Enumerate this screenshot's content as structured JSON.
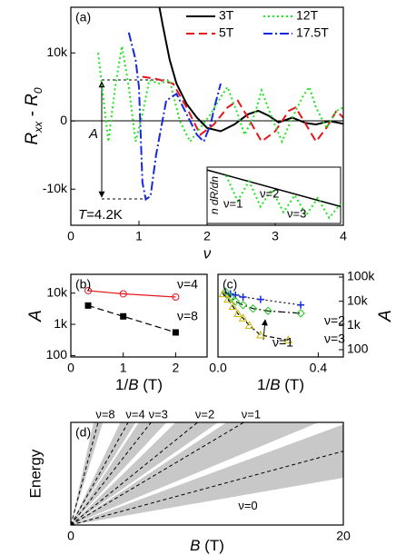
{
  "chart_data": [
    {
      "type": "line",
      "panel_label": "(a)",
      "xlabel": "ν",
      "ylabel_parts": [
        "R",
        "xx",
        " - R",
        "0"
      ],
      "xlim": [
        0,
        4
      ],
      "ylim": [
        -15300,
        16700
      ],
      "xticks": [
        0,
        1,
        2,
        3,
        4
      ],
      "yticks": [
        {
          "value": -10000,
          "label": "-10k"
        },
        0,
        {
          "value": 10000,
          "label": "10k"
        }
      ],
      "annotations": [
        "A",
        "T",
        "=4.2K"
      ],
      "series": [
        {
          "name": "3T",
          "color": "#000000",
          "dash": "",
          "x": [
            1.3,
            1.35,
            1.45,
            1.55,
            1.7,
            1.85,
            2.0,
            2.2,
            2.4,
            2.6,
            2.75,
            2.9,
            3.05,
            3.25,
            3.45,
            3.6,
            3.8,
            4.0
          ],
          "values": [
            16700,
            14000,
            9000,
            5500,
            2500,
            500,
            -1000,
            -1500,
            -500,
            1000,
            1500,
            800,
            -200,
            500,
            -300,
            -500,
            0,
            -400
          ]
        },
        {
          "name": "5T",
          "color": "#e8141c",
          "dash": "9,5",
          "x": [
            1.05,
            1.25,
            1.5,
            1.7,
            1.9,
            2.1,
            2.3,
            2.45,
            2.6,
            2.8,
            3.0,
            3.2,
            3.3,
            3.45,
            3.6,
            3.75,
            3.9,
            4.0
          ],
          "values": [
            6500,
            6200,
            5500,
            2000,
            -2000,
            -500,
            2000,
            3000,
            500,
            -3000,
            -1500,
            1500,
            2000,
            -500,
            -3000,
            -1000,
            1500,
            500
          ]
        },
        {
          "name": "12T",
          "color": "#1ee41e",
          "dash": "2,3",
          "x": [
            0.4,
            0.47,
            0.55,
            0.65,
            0.75,
            0.85,
            0.95,
            1.05,
            1.15,
            1.3,
            1.45,
            1.6,
            1.75,
            1.9,
            2.05,
            2.2,
            2.3,
            2.45,
            2.55,
            2.7,
            2.8,
            2.95,
            3.1,
            3.25,
            3.4,
            3.5,
            3.6,
            3.75,
            3.9,
            4.0
          ],
          "values": [
            10000,
            4000,
            -3000,
            5000,
            11000,
            5000,
            -3000,
            1000,
            6000,
            5500,
            6000,
            0,
            -3000,
            -1000,
            1000,
            3500,
            5000,
            1000,
            -2000,
            1000,
            4500,
            500,
            -3000,
            500,
            3500,
            5000,
            2000,
            -1000,
            1500,
            2000
          ]
        },
        {
          "name": "17.5T",
          "color": "#1428e0",
          "dash": "10,3,2,3",
          "x": [
            0.85,
            0.95,
            1.0,
            1.05,
            1.1,
            1.17,
            1.25,
            1.4,
            1.55,
            1.65,
            1.75,
            1.85,
            1.95,
            2.05,
            2.12,
            2.2
          ],
          "values": [
            13000,
            9000,
            5000,
            -9000,
            -11500,
            -11000,
            -5000,
            3000,
            4000,
            2000,
            0,
            -2000,
            -3000,
            -500,
            2500,
            5500
          ]
        }
      ],
      "inset": {
        "ylabel": "n dR/dn",
        "labels": [
          "ν=1",
          "ν=2",
          "ν=3"
        ],
        "xlim": [
          0.5,
          4
        ],
        "ylim": [
          0,
          1
        ],
        "line": {
          "color": "#000000",
          "x": [
            0.5,
            4
          ],
          "values": [
            0.95,
            0.3
          ]
        },
        "wiggle": {
          "color": "#1ee41e",
          "x": [
            1.0,
            1.3,
            1.6,
            1.9,
            2.2,
            2.5,
            2.8,
            3.1,
            3.4,
            3.7,
            4.0
          ],
          "values": [
            0.85,
            0.4,
            0.75,
            0.3,
            0.6,
            0.2,
            0.5,
            0.15,
            0.45,
            0.1,
            0.35
          ]
        }
      }
    },
    {
      "type": "scatter",
      "panel_label": "(b)",
      "log_y": true,
      "xlabel_parts": [
        "1/",
        "B",
        " (T)"
      ],
      "ylabel": "A",
      "xlim": [
        0,
        2.6
      ],
      "ylim": [
        90,
        40000
      ],
      "xticks": [
        0,
        1,
        2
      ],
      "yticks": [
        100,
        {
          "value": 1000,
          "label": "1k"
        },
        {
          "value": 10000,
          "label": "10k"
        }
      ],
      "series": [
        {
          "name": "ν=4",
          "color": "#e8141c",
          "marker": "open-circle",
          "dash": "",
          "x": [
            0.33,
            1,
            2
          ],
          "values": [
            12000,
            9500,
            7500
          ]
        },
        {
          "name": "ν=8",
          "color": "#000000",
          "marker": "square",
          "dash": "7,4",
          "x": [
            0.33,
            1,
            2
          ],
          "values": [
            4000,
            1800,
            550
          ]
        }
      ]
    },
    {
      "type": "scatter",
      "panel_label": "(c)",
      "log_y": true,
      "y_axis_side": "right",
      "xlabel_parts": [
        "1/",
        "B",
        " (T)"
      ],
      "ylabel": "A",
      "xlim": [
        0,
        0.5
      ],
      "ylim": [
        50,
        130000
      ],
      "xticks": [
        {
          "value": 0,
          "label": "0.0"
        },
        0.4
      ],
      "yticks": [
        100,
        {
          "value": 1000,
          "label": "1k"
        },
        {
          "value": 10000,
          "label": "10k"
        },
        {
          "value": 100000,
          "label": "100k"
        }
      ],
      "series": [
        {
          "name": "ν=2",
          "color": "#1428e0",
          "marker": "cross",
          "dash": "2,3",
          "x": [
            0.03,
            0.05,
            0.07,
            0.1,
            0.17,
            0.33
          ],
          "values": [
            22000,
            20000,
            18000,
            15000,
            12000,
            7000
          ]
        },
        {
          "name": "ν=3",
          "color": "#1ec81e",
          "marker": "diamond",
          "dash": "8,3,2,3",
          "x": [
            0.03,
            0.05,
            0.07,
            0.1,
            0.14,
            0.2,
            0.33
          ],
          "values": [
            25000,
            15000,
            10000,
            7000,
            5000,
            4000,
            3200
          ]
        },
        {
          "name": "ν=1",
          "color": "#c8b400",
          "marker": "triangle",
          "dash": "5,3",
          "x": [
            0.02,
            0.04,
            0.06,
            0.08,
            0.1,
            0.125,
            0.17,
            0.28
          ],
          "values": [
            20000,
            12000,
            6000,
            3000,
            2000,
            1000,
            400,
            250
          ]
        }
      ]
    },
    {
      "type": "fan",
      "panel_label": "(d)",
      "xlabel_parts": [
        "B",
        " (T)"
      ],
      "ylabel": "Energy",
      "xlim": [
        0,
        20
      ],
      "ylim": [
        0,
        1
      ],
      "xticks": [
        0,
        20
      ],
      "levels": [
        {
          "label": "ν=0",
          "center": 0.72,
          "low": 0.46,
          "high": 0.98
        },
        {
          "label": "ν=1",
          "center": 1.575,
          "low": 1.1,
          "high": 1.75
        },
        {
          "label": "ν=2",
          "center": 2.15,
          "low": 1.85,
          "high": 2.6
        },
        {
          "label": "ν=3",
          "center": 3.4,
          "low": 2.85,
          "high": 4.0
        },
        {
          "label": "ν=4",
          "center": 4.76,
          "low": 4.2,
          "high": 5.5
        },
        {
          "label": "ν=8",
          "center": 10,
          "low": 8.5,
          "high": 12
        }
      ]
    }
  ]
}
